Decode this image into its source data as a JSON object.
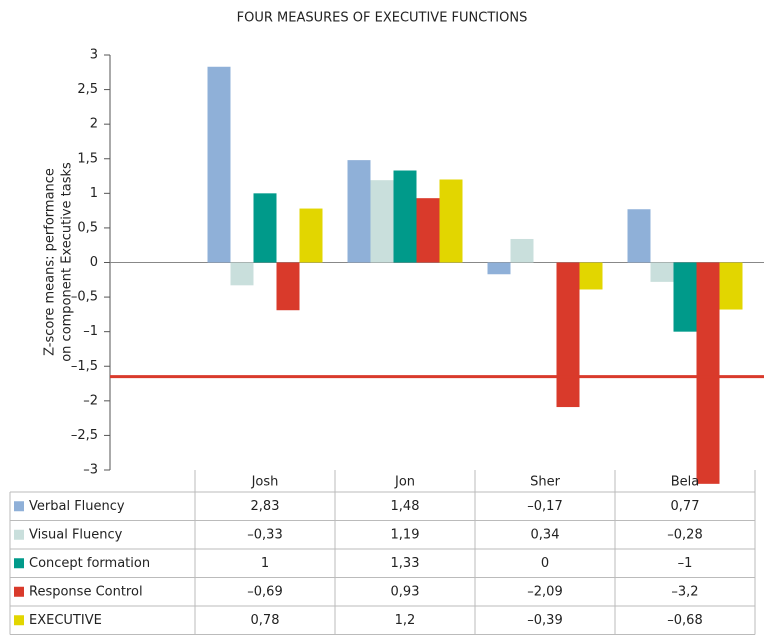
{
  "chart_data": {
    "type": "bar",
    "title": "FOUR  MEASURES OF EXECUTIVE FUNCTIONS",
    "y_label": [
      "Z-score means: performance",
      "on component Executive tasks"
    ],
    "categories": [
      "Josh",
      "Jon",
      "Sher",
      "Bela"
    ],
    "series": [
      {
        "name": "Verbal Fluency",
        "color": "#8fb0d8",
        "values": [
          2.83,
          1.48,
          -0.17,
          0.77
        ],
        "value_labels": [
          "2,83",
          "1,48",
          "–0,17",
          "0,77"
        ]
      },
      {
        "name": "Visual Fluency",
        "color": "#c9dfdc",
        "values": [
          -0.33,
          1.19,
          0.34,
          -0.28
        ],
        "value_labels": [
          "–0,33",
          "1,19",
          "0,34",
          "–0,28"
        ]
      },
      {
        "name": "Concept formation",
        "color": "#009a8a",
        "values": [
          1,
          1.33,
          0,
          -1
        ],
        "value_labels": [
          "1",
          "1,33",
          "0",
          "–1"
        ]
      },
      {
        "name": "Response Control",
        "color": "#d93a2b",
        "values": [
          -0.69,
          0.93,
          -2.09,
          -3.2
        ],
        "value_labels": [
          "–0,69",
          "0,93",
          "–2,09",
          "–3,2"
        ]
      },
      {
        "name": "EXECUTIVE",
        "color": "#e2d600",
        "values": [
          0.78,
          1.2,
          -0.39,
          -0.68
        ],
        "value_labels": [
          "0,78",
          "1,2",
          "–0,39",
          "–0,68"
        ]
      }
    ],
    "reference_line": {
      "value": -1.65,
      "color": "#d93a2b"
    },
    "ylim": [
      -3,
      3
    ],
    "yticks": [
      3,
      {
        "value": 2.5,
        "label": "2,5"
      },
      2,
      {
        "value": 1.5,
        "label": "1,5"
      },
      1,
      {
        "value": 0.5,
        "label": "0,5"
      },
      0,
      {
        "value": -0.5,
        "label": "–0,5"
      },
      {
        "value": -1,
        "label": "–1"
      },
      {
        "value": -1.5,
        "label": "–1,5"
      },
      {
        "value": -2,
        "label": "–2"
      },
      {
        "value": -2.5,
        "label": "–2,5"
      },
      {
        "value": -3,
        "label": "–3"
      }
    ]
  }
}
